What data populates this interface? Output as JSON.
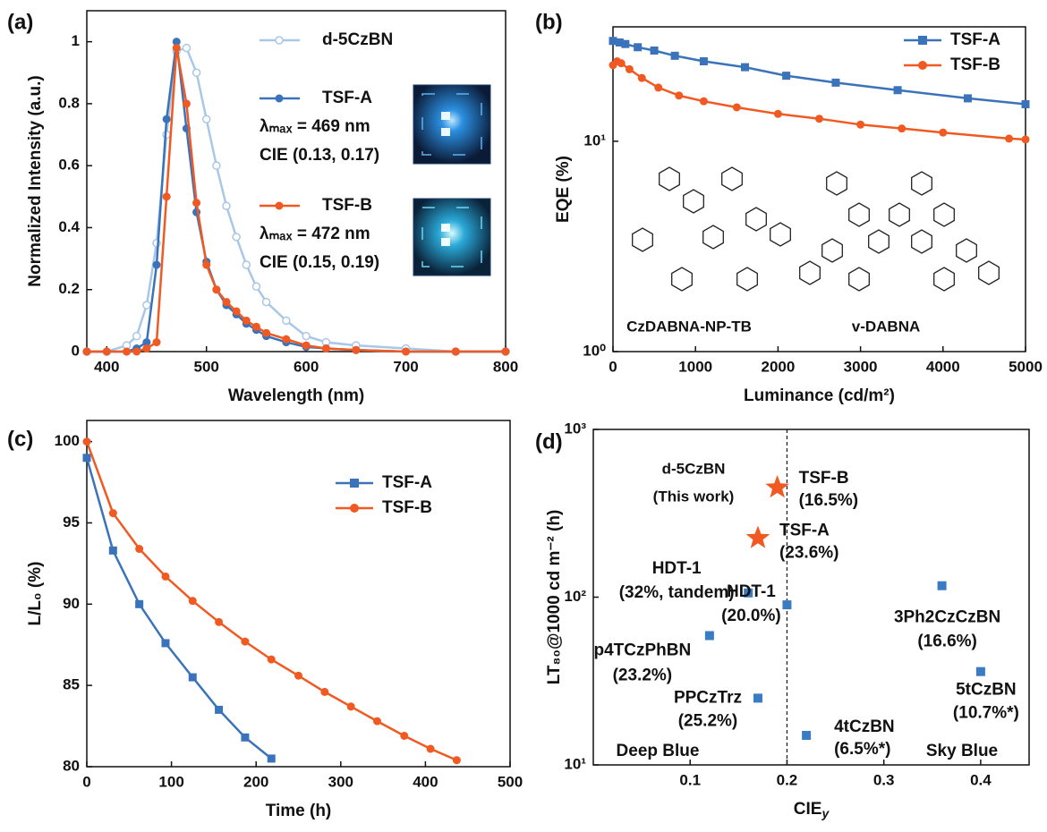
{
  "chart_data": [
    {
      "type": "line",
      "panel_label": "(a)",
      "x_label": "Wavelength (nm)",
      "y_label": "Normalized Intensity (a.u.)",
      "xlim": [
        380,
        800
      ],
      "ylim": [
        0,
        1.1
      ],
      "xticks": [
        400,
        500,
        600,
        700,
        800
      ],
      "yticks": [
        0,
        0.2,
        0.4,
        0.6,
        0.8,
        1
      ],
      "x": [
        380,
        400,
        420,
        430,
        440,
        450,
        460,
        470,
        480,
        490,
        500,
        510,
        520,
        530,
        540,
        550,
        560,
        580,
        600,
        620,
        650,
        700,
        750,
        800
      ],
      "series": [
        {
          "name": "d-5CzBN",
          "color": "#a9c7e6",
          "marker": "open-circle",
          "values": [
            0,
            0,
            0.02,
            0.05,
            0.15,
            0.35,
            0.7,
            0.97,
            0.98,
            0.9,
            0.75,
            0.6,
            0.47,
            0.37,
            0.28,
            0.21,
            0.16,
            0.1,
            0.05,
            0.03,
            0.02,
            0.01,
            0,
            0
          ]
        },
        {
          "name": "TSF-A",
          "color": "#3a73ba",
          "marker": "circle",
          "values": [
            0,
            0,
            0,
            0.01,
            0.03,
            0.28,
            0.75,
            1,
            0.72,
            0.45,
            0.29,
            0.2,
            0.15,
            0.12,
            0.09,
            0.07,
            0.05,
            0.03,
            0.015,
            0.01,
            0.005,
            0,
            0,
            0
          ],
          "annotations": [
            "λₘₐₓ = 469 nm",
            "CIE (0.13, 0.17)"
          ]
        },
        {
          "name": "TSF-B",
          "color": "#f05a22",
          "marker": "circle",
          "values": [
            0,
            0,
            0,
            0,
            0.01,
            0.03,
            0.5,
            0.98,
            0.8,
            0.48,
            0.28,
            0.2,
            0.16,
            0.13,
            0.1,
            0.08,
            0.06,
            0.04,
            0.02,
            0.01,
            0.005,
            0,
            0,
            0
          ],
          "annotations": [
            "λₘₐₓ = 472 nm",
            "CIE (0.15, 0.19)"
          ]
        }
      ]
    },
    {
      "type": "line",
      "panel_label": "(b)",
      "x_label": "Luminance (cd/m²)",
      "y_label": "EQE (%)",
      "log_y": true,
      "xlim": [
        0,
        5000
      ],
      "ylim": [
        1,
        35
      ],
      "xticks": [
        0,
        1000,
        2000,
        3000,
        4000,
        5000
      ],
      "yticks": [
        {
          "value": 1,
          "label": "10⁰"
        },
        {
          "value": 10,
          "label": "10¹"
        }
      ],
      "legend": "upper right",
      "structures": [
        "CzDABNA-NP-TB",
        "v-DABNA"
      ],
      "series": [
        {
          "name": "TSF-A",
          "color": "#3a73ba",
          "marker": "square",
          "x": [
            0,
            80,
            150,
            300,
            500,
            750,
            1100,
            1600,
            2100,
            2700,
            3450,
            4300,
            5000
          ],
          "values": [
            30,
            29.5,
            29,
            28,
            27,
            25.5,
            24,
            22.5,
            20.5,
            19,
            17.5,
            16,
            15
          ]
        },
        {
          "name": "TSF-B",
          "color": "#f05a22",
          "marker": "circle",
          "x": [
            0,
            50,
            100,
            200,
            350,
            550,
            800,
            1100,
            1500,
            2000,
            2500,
            3000,
            3500,
            4000,
            4800,
            5000
          ],
          "values": [
            23,
            24,
            23.5,
            22,
            20,
            18,
            16.5,
            15.5,
            14.5,
            13.5,
            12.8,
            12,
            11.5,
            11,
            10.3,
            10.2
          ]
        }
      ]
    },
    {
      "type": "line",
      "panel_label": "(c)",
      "x_label": "Time (h)",
      "y_label": "L/L₀ (%)",
      "xlim": [
        0,
        500
      ],
      "ylim": [
        80,
        101.3
      ],
      "xticks": [
        0,
        100,
        200,
        300,
        400,
        500
      ],
      "yticks": [
        80,
        85,
        90,
        95,
        100
      ],
      "legend": "upper right",
      "series": [
        {
          "name": "TSF-A",
          "color": "#3a73ba",
          "marker": "square",
          "x": [
            0,
            31,
            62,
            93,
            125,
            156,
            187,
            218
          ],
          "values": [
            99,
            93.3,
            90,
            87.6,
            85.5,
            83.5,
            81.8,
            80.5
          ]
        },
        {
          "name": "TSF-B",
          "color": "#f05a22",
          "marker": "circle",
          "x": [
            0,
            31,
            62,
            93,
            125,
            156,
            187,
            218,
            250,
            281,
            312,
            343,
            375,
            406,
            437
          ],
          "values": [
            100,
            95.6,
            93.4,
            91.7,
            90.2,
            88.9,
            87.7,
            86.6,
            85.6,
            84.6,
            83.7,
            82.8,
            81.9,
            81.1,
            80.4
          ]
        }
      ]
    },
    {
      "type": "scatter",
      "panel_label": "(d)",
      "x_label": "CIE",
      "x_label_sub": "y",
      "y_label": "LT₈₀@1000 cd m⁻² (h)",
      "log_y": true,
      "xlim": [
        0,
        0.45
      ],
      "ylim": [
        10,
        1000
      ],
      "xticks": [
        0.1,
        0.2,
        0.3,
        0.4
      ],
      "yticks": [
        {
          "value": 10,
          "label": "10¹"
        },
        {
          "value": 100,
          "label": "10²"
        },
        {
          "value": 1000,
          "label": "10³"
        }
      ],
      "vline": 0.2,
      "highlight": [
        "d-5CzBN",
        "(This work)"
      ],
      "regions": [
        "Deep Blue",
        "Sky Blue"
      ],
      "points": [
        {
          "label": [
            "TSF-B",
            "(16.5%)"
          ],
          "x": 0.19,
          "y": 450,
          "color": "#f05a22",
          "marker": "star"
        },
        {
          "label": [
            "TSF-A",
            "(23.6%)"
          ],
          "x": 0.17,
          "y": 225,
          "color": "#f05a22",
          "marker": "star"
        },
        {
          "label": [
            "HDT-1",
            "(32%, tandem)"
          ],
          "x": 0.16,
          "y": 106,
          "color": "#3a7cc4",
          "marker": "square"
        },
        {
          "label": [
            "HDT-1",
            "(20.0%)"
          ],
          "x": 0.2,
          "y": 90,
          "color": "#3a7cc4",
          "marker": "square"
        },
        {
          "label": [
            "p4TCzPhBN",
            "(23.2%)"
          ],
          "x": 0.12,
          "y": 59,
          "color": "#3a7cc4",
          "marker": "square"
        },
        {
          "label": [
            "PPCzTrz",
            "(25.2%)"
          ],
          "x": 0.17,
          "y": 25,
          "color": "#3a7cc4",
          "marker": "square"
        },
        {
          "label": [
            "4tCzBN",
            "(6.5%*)"
          ],
          "x": 0.22,
          "y": 15,
          "color": "#3a7cc4",
          "marker": "square"
        },
        {
          "label": [
            "3Ph2CzCzBN",
            "(16.6%)"
          ],
          "x": 0.36,
          "y": 117,
          "color": "#3a7cc4",
          "marker": "square"
        },
        {
          "label": [
            "5tCzBN",
            "(10.7%*)"
          ],
          "x": 0.4,
          "y": 36,
          "color": "#3a7cc4",
          "marker": "square"
        }
      ]
    }
  ]
}
